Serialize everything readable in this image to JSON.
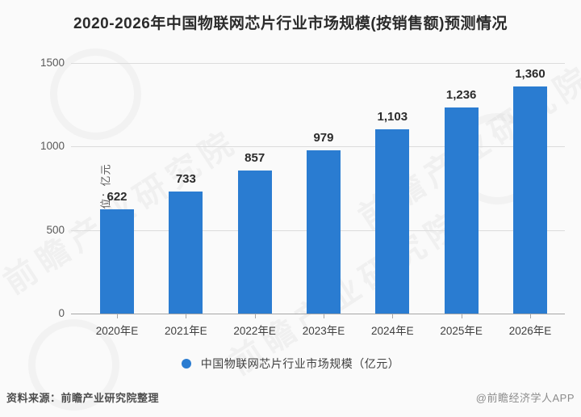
{
  "title": "2020-2026年中国物联网芯片行业市场规模(按销售额)预测情况",
  "chart_data": {
    "type": "bar",
    "categories": [
      "2020年E",
      "2021年E",
      "2022年E",
      "2023年E",
      "2024年E",
      "2025年E",
      "2026年E"
    ],
    "values": [
      622,
      733,
      857,
      979,
      1103,
      1236,
      1360
    ],
    "value_labels": [
      "622",
      "733",
      "857",
      "979",
      "1,103",
      "1,236",
      "1,360"
    ],
    "title": "2020-2026年中国物联网芯片行业市场规模(按销售额)预测情况",
    "xlabel": "",
    "ylabel": "单位：亿元",
    "ylim": [
      0,
      1500
    ],
    "yticks": [
      0,
      500,
      1000,
      1500
    ],
    "grid": true,
    "bar_color": "#2A7CD1",
    "legend": {
      "label": "中国物联网芯片行业市场规模（亿元）",
      "position": "bottom",
      "marker_color": "#2A7CD1"
    }
  },
  "footer": {
    "source": "资料来源：前瞻产业研究院整理",
    "credit": "@前瞻经济学人APP"
  },
  "watermark": {
    "text": "前瞻产业研究院"
  },
  "colors": {
    "background": "#fafafa",
    "bar": "#2A7CD1",
    "gridline": "#dcdcdc",
    "axis": "#a6a6a6",
    "title_text": "#2b2b2b",
    "tick_text": "#595959",
    "category_text": "#404040",
    "source_text": "#4d4d4d",
    "credit_text": "#8c8c8c"
  }
}
